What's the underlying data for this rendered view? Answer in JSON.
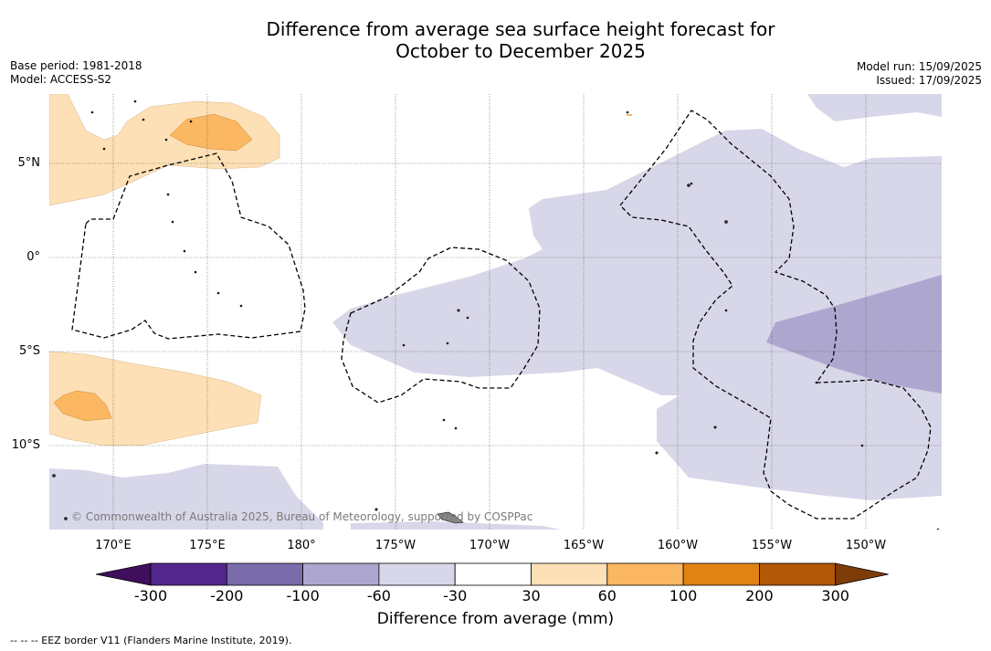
{
  "title": {
    "line1": "Difference from average sea surface height forecast for",
    "line2": "October to December 2025"
  },
  "meta_left": {
    "base_period": "Base period: 1981-2018",
    "model": "Model: ACCESS-S2"
  },
  "meta_right": {
    "model_run": "Model run: 15/09/2025",
    "issued": "Issued: 17/09/2025"
  },
  "map": {
    "lat_labels": [
      "5°N",
      "0°",
      "5°S",
      "10°S"
    ],
    "lon_labels": [
      "170°E",
      "175°E",
      "180°",
      "175°W",
      "170°W",
      "165°W",
      "160°W",
      "155°W",
      "150°W"
    ],
    "copyright": "© Commonwealth of Australia 2025, Bureau of Meteorology, supported by COSPPac"
  },
  "colorbar": {
    "ticks": [
      "-300",
      "-200",
      "-100",
      "-60",
      "-30",
      "30",
      "60",
      "100",
      "200",
      "300"
    ],
    "colors": [
      "#3f0e5c",
      "#54278f",
      "#7a6bab",
      "#ada7d0",
      "#d7d7e9",
      "#ffffff",
      "#fde0b5",
      "#fbb761",
      "#e08214",
      "#b35806",
      "#7f3b08"
    ],
    "label": "Difference from average (mm)"
  },
  "footnote": "--  --  -- EEZ border V11 (Flanders Marine Institute, 2019)."
}
